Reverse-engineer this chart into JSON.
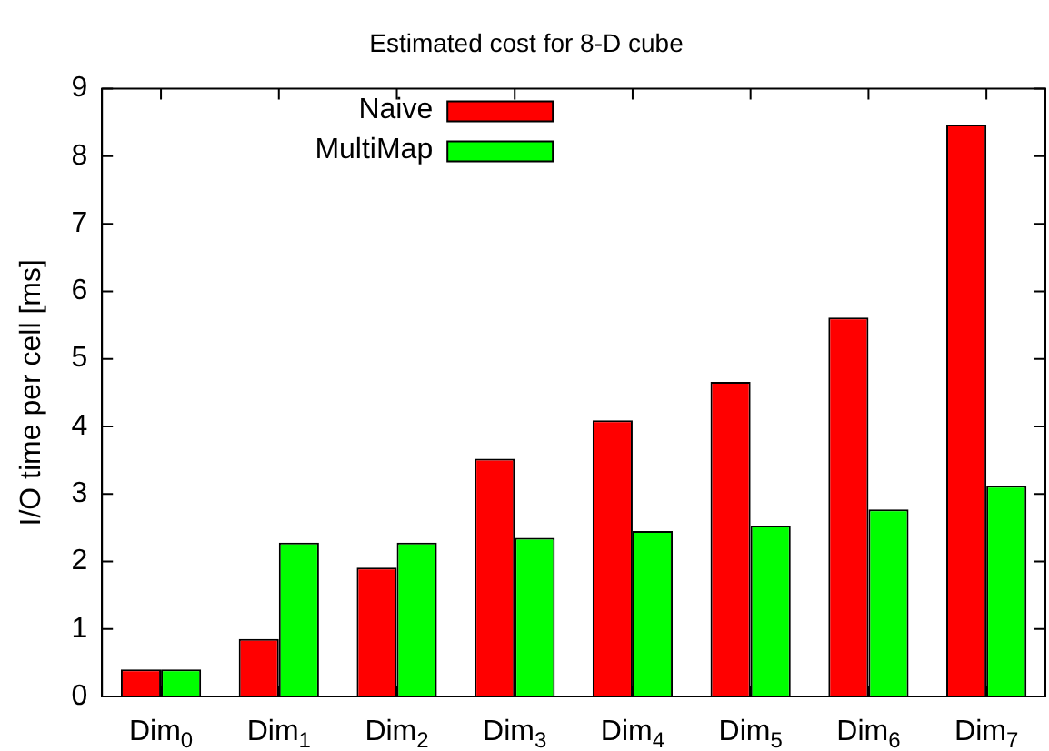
{
  "chart_data": {
    "type": "bar",
    "title": "Estimated cost for 8-D cube",
    "ylabel": "I/O time per cell [ms]",
    "categories": [
      "Dim$_{0}$",
      "Dim$_{1}$",
      "Dim$_{2}$",
      "Dim$_{3}$",
      "Dim$_{4}$",
      "Dim$_{5}$",
      "Dim$_{6}$",
      "Dim$_{7}$"
    ],
    "series": [
      {
        "name": "Naive",
        "color": "#ff0000",
        "values": [
          0.4,
          0.85,
          1.91,
          3.52,
          4.09,
          4.66,
          5.61,
          8.47
        ]
      },
      {
        "name": "MultiMap",
        "color": "#00ff00",
        "values": [
          0.4,
          2.28,
          2.28,
          2.35,
          2.45,
          2.53,
          2.77,
          3.12
        ]
      }
    ],
    "ylim": [
      0,
      9
    ],
    "yticks": [
      0,
      1,
      2,
      3,
      4,
      5,
      6,
      7,
      8,
      9
    ],
    "grid": false,
    "legend": "top left"
  }
}
